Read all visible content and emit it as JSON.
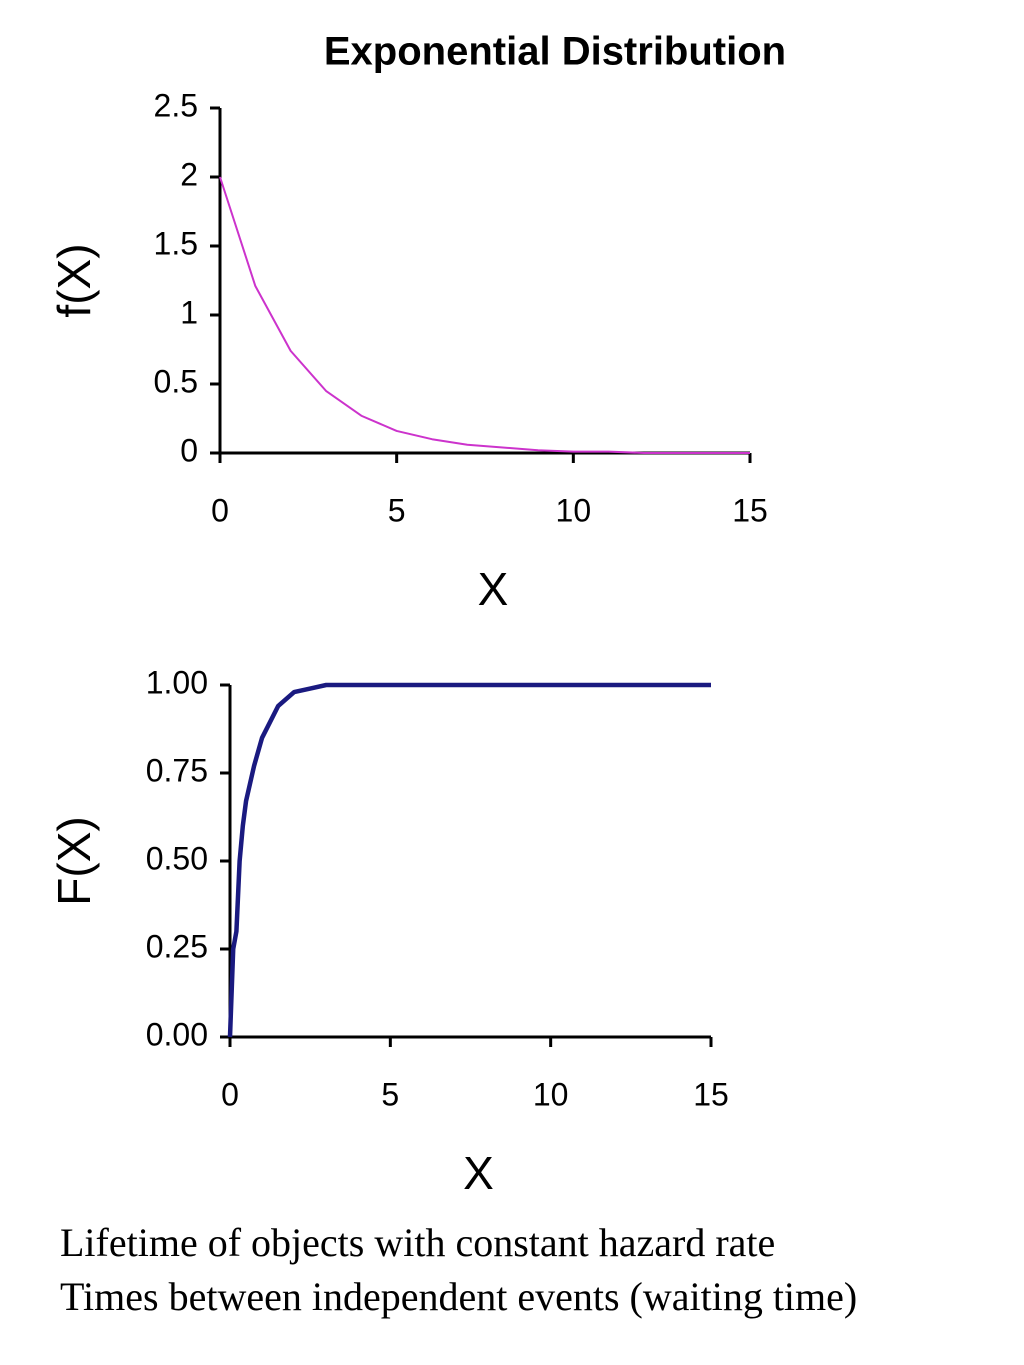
{
  "chart_data": [
    {
      "type": "line",
      "title": "Exponential Distribution",
      "x_label": "X",
      "y_label": "f(X)",
      "x": [
        0,
        1,
        2,
        3,
        4,
        5,
        6,
        7,
        8,
        9,
        10,
        11,
        12,
        13,
        14,
        15
      ],
      "series": [
        {
          "color": "#cc33cc",
          "values": [
            2,
            1.21,
            0.74,
            0.45,
            0.27,
            0.16,
            0.1,
            0.06,
            0.04,
            0.02,
            0.01,
            0.01,
            0,
            0,
            0,
            0
          ]
        }
      ],
      "xlim": [
        0,
        15
      ],
      "xticks": [
        0,
        5,
        10,
        15
      ],
      "ylim": [
        0,
        2.5
      ],
      "yticks": [
        0,
        0.5,
        1,
        1.5,
        2,
        2.5
      ]
    },
    {
      "type": "line",
      "x_label": "X",
      "y_label": "F(X)",
      "x": [
        0,
        0.1,
        0.2,
        0.3,
        0.4,
        0.5,
        0.75,
        1,
        1.5,
        2,
        2.5,
        3,
        5,
        10,
        15
      ],
      "series": [
        {
          "color": "#1a1a80",
          "values": [
            0,
            0.25,
            0.3,
            0.5,
            0.6,
            0.67,
            0.77,
            0.85,
            0.94,
            0.98,
            0.99,
            1,
            1,
            1,
            1
          ]
        }
      ],
      "xlim": [
        0,
        15
      ],
      "xticks": [
        0,
        5,
        10,
        15
      ],
      "ylim": [
        0,
        1
      ],
      "yticks": [
        {
          "value": 0,
          "label": "0.00"
        },
        0.25,
        {
          "value": 0.5,
          "label": "0.50"
        },
        0.75,
        {
          "value": 1,
          "label": "1.00"
        }
      ]
    }
  ],
  "captions": [
    "Lifetime of objects with constant hazard rate",
    "Times between independent events (waiting time)"
  ]
}
